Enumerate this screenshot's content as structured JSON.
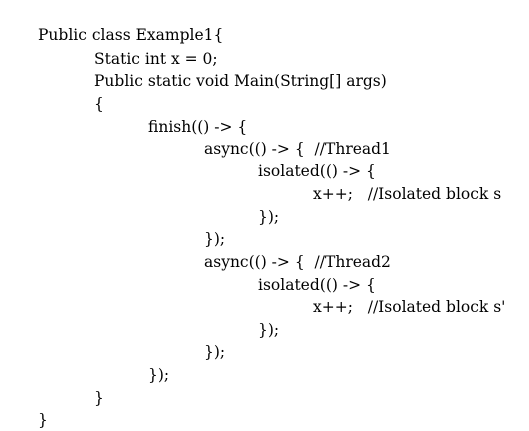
{
  "document": {
    "lines": [
      "Public class Example1{",
      "Static int x = 0;",
      "Public static void Main(String[] args)",
      "{",
      "finish(() -> {",
      "async(() -> {  //Thread1",
      "isolated(() -> {",
      "x++;   //Isolated block s",
      "});",
      "});",
      "async(() -> {  //Thread2",
      "isolated(() -> {",
      "x++;   //Isolated block s'",
      "});",
      "});",
      "});",
      "}",
      "}"
    ]
  },
  "colors": {
    "text": "#000000",
    "background": "#ffffff"
  }
}
